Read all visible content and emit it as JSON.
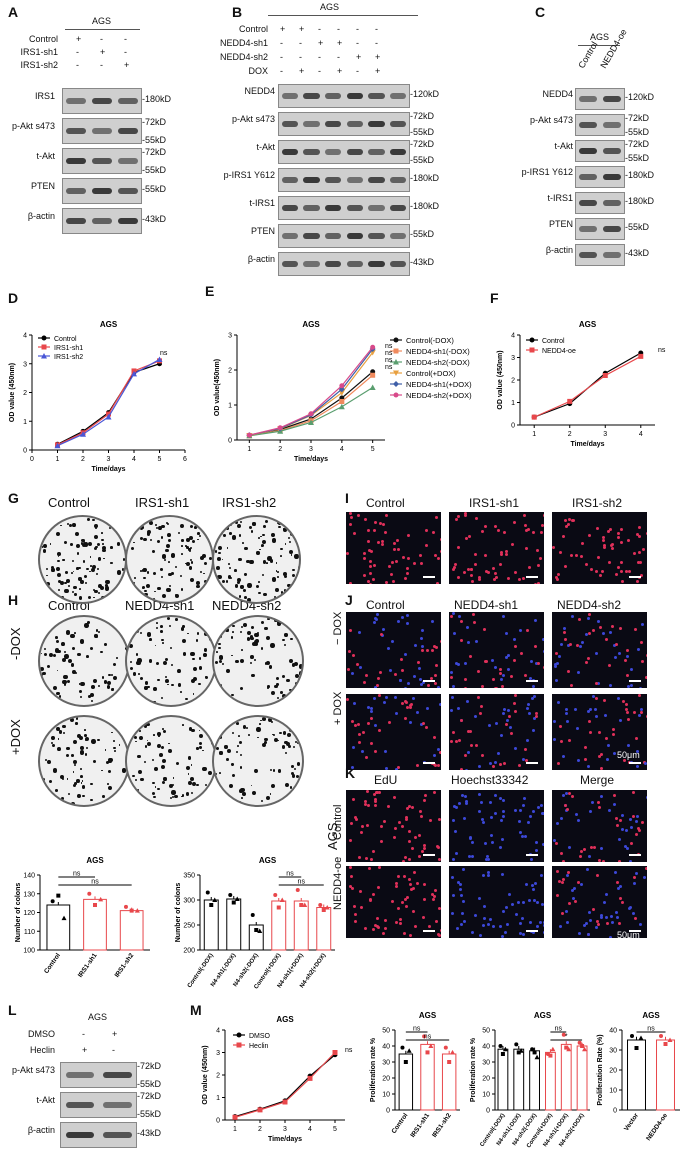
{
  "panels": {
    "A": {
      "letter": "A",
      "cell": "AGS",
      "rows": [
        "Control",
        "IRS1-sh1",
        "IRS1-sh2"
      ],
      "signs": [
        [
          "+",
          "-",
          "-"
        ],
        [
          "-",
          "+",
          "-"
        ],
        [
          "-",
          "-",
          "+"
        ]
      ],
      "blots": [
        {
          "name": "IRS1",
          "kd": [
            "-180kD"
          ]
        },
        {
          "name": "p-Akt s473",
          "kd": [
            "-72kD",
            "-55kD"
          ]
        },
        {
          "name": "t-Akt",
          "kd": [
            "-72kD",
            "-55kD"
          ]
        },
        {
          "name": "PTEN",
          "kd": [
            "-55kD"
          ]
        },
        {
          "name": "β-actin",
          "kd": [
            "-43kD"
          ]
        }
      ]
    },
    "B": {
      "letter": "B",
      "cell": "AGS",
      "rows": [
        "Control",
        "NEDD4-sh1",
        "NEDD4-sh2",
        "DOX"
      ],
      "signs": [
        [
          "+",
          "+",
          "-",
          "-",
          "-",
          "-"
        ],
        [
          "-",
          "-",
          "+",
          "+",
          "-",
          "-"
        ],
        [
          "-",
          "-",
          "-",
          "-",
          "+",
          "+"
        ],
        [
          "-",
          "+",
          "-",
          "+",
          "-",
          "+"
        ]
      ],
      "blots": [
        {
          "name": "NEDD4",
          "kd": [
            "-120kD"
          ]
        },
        {
          "name": "p-Akt s473",
          "kd": [
            "-72kD",
            "-55kD"
          ]
        },
        {
          "name": "t-Akt",
          "kd": [
            "-72kD",
            "-55kD"
          ]
        },
        {
          "name": "p-IRS1 Y612",
          "kd": [
            "-180kD"
          ]
        },
        {
          "name": "t-IRS1",
          "kd": [
            "-180kD"
          ]
        },
        {
          "name": "PTEN",
          "kd": [
            "-55kD"
          ]
        },
        {
          "name": "β-actin",
          "kd": [
            "-43kD"
          ]
        }
      ]
    },
    "C": {
      "letter": "C",
      "cell": "AGS",
      "cols": [
        "Control",
        "NEDD4-oe"
      ],
      "blots": [
        {
          "name": "NEDD4",
          "kd": [
            "-120kD"
          ]
        },
        {
          "name": "p-Akt s473",
          "kd": [
            "-72kD",
            "-55kD"
          ]
        },
        {
          "name": "t-Akt",
          "kd": [
            "-72kD",
            "-55kD"
          ]
        },
        {
          "name": "p-IRS1 Y612",
          "kd": [
            "-180kD"
          ]
        },
        {
          "name": "t-IRS1",
          "kd": [
            "-180kD"
          ]
        },
        {
          "name": "PTEN",
          "kd": [
            "-55kD"
          ]
        },
        {
          "name": "β-actin",
          "kd": [
            "-43kD"
          ]
        }
      ]
    },
    "G": {
      "letter": "G",
      "labels": [
        "Control",
        "IRS1-sh1",
        "IRS1-sh2"
      ]
    },
    "H": {
      "letter": "H",
      "labels": [
        "Control",
        "NEDD4-sh1",
        "NEDD4-sh2"
      ],
      "rows": [
        "-DOX",
        "+DOX"
      ]
    },
    "I": {
      "letter": "I",
      "labels": [
        "Control",
        "IRS1-sh1",
        "IRS1-sh2"
      ]
    },
    "J": {
      "letter": "J",
      "labels": [
        "Control",
        "NEDD4-sh1",
        "NEDD4-sh2"
      ],
      "rows": [
        "− DOX",
        "+ DOX"
      ],
      "scale": "50μm"
    },
    "K": {
      "letter": "K",
      "labels": [
        "EdU",
        "Hoechst33342",
        "Merge"
      ],
      "rows": [
        "Control",
        "NEDD4-oe"
      ],
      "cell": "AGS",
      "scale": "50μm"
    },
    "L": {
      "letter": "L",
      "cell": "AGS",
      "rows": [
        "DMSO",
        "Heclin"
      ],
      "signs": [
        [
          "-",
          "+"
        ],
        [
          "+",
          "-"
        ]
      ],
      "blots": [
        {
          "name": "p-Akt s473",
          "kd": [
            "-72kD",
            "-55kD"
          ]
        },
        {
          "name": "t-Akt",
          "kd": [
            "-72kD",
            "-55kD"
          ]
        },
        {
          "name": "β-actin",
          "kd": [
            "-43kD"
          ]
        }
      ]
    },
    "D": {
      "letter": "D"
    },
    "E": {
      "letter": "E"
    },
    "F": {
      "letter": "F"
    },
    "M": {
      "letter": "M"
    }
  },
  "chart_data": [
    {
      "id": "D",
      "type": "line",
      "title": "AGS",
      "xlabel": "Time/days",
      "ylabel": "OD value (450nm)",
      "xlim": [
        0,
        6
      ],
      "ylim": [
        0,
        4
      ],
      "xticks": [
        0,
        1,
        2,
        3,
        4,
        5,
        6
      ],
      "yticks": [
        0,
        1,
        2,
        3,
        4
      ],
      "annotation": "ns",
      "legend": "top-left",
      "series": [
        {
          "name": "Control",
          "color": "#000000",
          "marker": "circle",
          "x": [
            1,
            2,
            3,
            4,
            5
          ],
          "y": [
            0.2,
            0.65,
            1.3,
            2.7,
            3.0
          ]
        },
        {
          "name": "IRS1-sh1",
          "color": "#e8474b",
          "marker": "square",
          "x": [
            1,
            2,
            3,
            4,
            5
          ],
          "y": [
            0.18,
            0.6,
            1.25,
            2.75,
            3.1
          ]
        },
        {
          "name": "IRS1-sh2",
          "color": "#4a57d6",
          "marker": "triangle",
          "x": [
            1,
            2,
            3,
            4,
            5
          ],
          "y": [
            0.15,
            0.55,
            1.15,
            2.65,
            3.15
          ]
        }
      ]
    },
    {
      "id": "E",
      "type": "line",
      "title": "AGS",
      "xlabel": "Time/days",
      "ylabel": "OD value(450nm)",
      "xlim": [
        0.6,
        5.4
      ],
      "ylim": [
        0,
        3
      ],
      "xticks": [
        1,
        2,
        3,
        4,
        5
      ],
      "yticks": [
        0,
        1,
        2,
        3
      ],
      "annotation": [
        "ns",
        "ns",
        "ns",
        "ns"
      ],
      "legend": "right",
      "series": [
        {
          "name": "Control(-DOX)",
          "color": "#111111",
          "marker": "circle",
          "x": [
            1,
            2,
            3,
            4,
            5
          ],
          "y": [
            0.13,
            0.3,
            0.6,
            1.2,
            1.95
          ]
        },
        {
          "name": "NEDD4-sh1(-DOX)",
          "color": "#f08a5d",
          "marker": "square",
          "x": [
            1,
            2,
            3,
            4,
            5
          ],
          "y": [
            0.12,
            0.27,
            0.55,
            1.1,
            1.85
          ]
        },
        {
          "name": "NEDD4-sh2(-DOX)",
          "color": "#5a9e6f",
          "marker": "triangle",
          "x": [
            1,
            2,
            3,
            4,
            5
          ],
          "y": [
            0.12,
            0.25,
            0.5,
            0.95,
            1.5
          ]
        },
        {
          "name": "Control(+DOX)",
          "color": "#e8a040",
          "marker": "triangle-down",
          "x": [
            1,
            2,
            3,
            4,
            5
          ],
          "y": [
            0.13,
            0.32,
            0.7,
            1.35,
            2.5
          ]
        },
        {
          "name": "NEDD4-sh1(+DOX)",
          "color": "#3f5fa8",
          "marker": "diamond",
          "x": [
            1,
            2,
            3,
            4,
            5
          ],
          "y": [
            0.14,
            0.33,
            0.72,
            1.45,
            2.6
          ]
        },
        {
          "name": "NEDD4-sh2(+DOX)",
          "color": "#d84a8a",
          "marker": "circle",
          "x": [
            1,
            2,
            3,
            4,
            5
          ],
          "y": [
            0.14,
            0.35,
            0.75,
            1.55,
            2.65
          ]
        }
      ]
    },
    {
      "id": "F",
      "type": "line",
      "title": "AGS",
      "xlabel": "Time/days",
      "ylabel": "OD value (450nm)",
      "xlim": [
        0.6,
        4.4
      ],
      "ylim": [
        0,
        4
      ],
      "xticks": [
        1,
        2,
        3,
        4
      ],
      "yticks": [
        0,
        1,
        2,
        3,
        4
      ],
      "annotation": "ns",
      "legend": "top-left",
      "series": [
        {
          "name": "Control",
          "color": "#000000",
          "marker": "circle",
          "x": [
            1,
            2,
            3,
            4
          ],
          "y": [
            0.35,
            0.95,
            2.3,
            3.2
          ]
        },
        {
          "name": "NEDD4-oe",
          "color": "#e8474b",
          "marker": "square",
          "x": [
            1,
            2,
            3,
            4
          ],
          "y": [
            0.35,
            1.05,
            2.2,
            3.05
          ]
        }
      ]
    },
    {
      "id": "H1",
      "type": "bar",
      "title": "AGS",
      "ylabel": "Number of colons",
      "ylim": [
        100,
        140
      ],
      "yticks": [
        100,
        110,
        120,
        130,
        140
      ],
      "categories": [
        "Control",
        "IRS1-sh1",
        "IRS1-sh2"
      ],
      "values": [
        124,
        127,
        121
      ],
      "colors": [
        "#000000",
        "#e8474b",
        "#e8474b"
      ],
      "points": [
        [
          126,
          129,
          117
        ],
        [
          130,
          124,
          127
        ],
        [
          123,
          121,
          121
        ]
      ],
      "annotation": [
        "ns",
        "ns"
      ]
    },
    {
      "id": "H2",
      "type": "bar",
      "title": "AGS",
      "ylabel": "Number of colons",
      "ylim": [
        200,
        350
      ],
      "yticks": [
        200,
        250,
        300,
        350
      ],
      "categories": [
        "Control(-DOX)",
        "N4-sh1(-DOX)",
        "N4-sh2(-DOX)",
        "Control(+DOX)",
        "N4-sh1(+DOX)",
        "N4-sh2(+DOX)"
      ],
      "values": [
        300,
        302,
        250,
        298,
        298,
        285
      ],
      "colors": [
        "#000000",
        "#000000",
        "#000000",
        "#e8474b",
        "#e8474b",
        "#e8474b"
      ],
      "points": [
        [
          315,
          290,
          300
        ],
        [
          310,
          295,
          302
        ],
        [
          270,
          240,
          238
        ],
        [
          310,
          285,
          300
        ],
        [
          320,
          290,
          290
        ],
        [
          290,
          280,
          285
        ]
      ],
      "annotation": [
        "ns",
        "ns"
      ]
    },
    {
      "id": "L-M",
      "type": "line",
      "title": "AGS",
      "xlabel": "Time/days",
      "ylabel": "OD value (450nm)",
      "xlim": [
        0.6,
        5.4
      ],
      "ylim": [
        0,
        4
      ],
      "xticks": [
        1,
        2,
        3,
        4,
        5
      ],
      "yticks": [
        0,
        1,
        2,
        3,
        4
      ],
      "annotation": "ns",
      "legend": "top-left",
      "series": [
        {
          "name": "DMSO",
          "color": "#000000",
          "marker": "circle",
          "x": [
            1,
            2,
            3,
            4,
            5
          ],
          "y": [
            0.15,
            0.48,
            0.85,
            1.95,
            2.9
          ]
        },
        {
          "name": "Heclin",
          "color": "#e8474b",
          "marker": "square",
          "x": [
            1,
            2,
            3,
            4,
            5
          ],
          "y": [
            0.12,
            0.45,
            0.8,
            1.85,
            3.0
          ]
        }
      ]
    },
    {
      "id": "M1",
      "type": "bar",
      "title": "AGS",
      "ylabel": "Proliferation rate %",
      "ylim": [
        0,
        50
      ],
      "yticks": [
        0,
        10,
        20,
        30,
        40,
        50
      ],
      "categories": [
        "Control",
        "IRS1-sh1",
        "IRS1-sh2"
      ],
      "values": [
        35,
        41,
        35
      ],
      "colors": [
        "#000000",
        "#e8474b",
        "#e8474b"
      ],
      "points": [
        [
          39,
          30,
          37
        ],
        [
          46,
          36,
          40
        ],
        [
          39,
          30,
          36
        ]
      ],
      "annotation": [
        "ns",
        "ns"
      ]
    },
    {
      "id": "M2",
      "type": "bar",
      "title": "AGS",
      "ylabel": "Proliferation rate %",
      "ylim": [
        0,
        50
      ],
      "yticks": [
        0,
        10,
        20,
        30,
        40,
        50
      ],
      "categories": [
        "Control(-DOX)",
        "N4-sh1(-DOX)",
        "N4-sh2(-DOX)",
        "Control(+DOX)",
        "N4-sh1(+DOX)",
        "N4-sh2(+DOX)"
      ],
      "values": [
        38,
        38,
        37,
        36,
        41,
        40
      ],
      "colors": [
        "#000000",
        "#000000",
        "#000000",
        "#e8474b",
        "#e8474b",
        "#e8474b"
      ],
      "points": [
        [
          40,
          35,
          38
        ],
        [
          41,
          36,
          37
        ],
        [
          38,
          36,
          33
        ],
        [
          35,
          34,
          38
        ],
        [
          47,
          39,
          38
        ],
        [
          42,
          40,
          38
        ]
      ],
      "annotation": [
        "ns",
        "*"
      ]
    },
    {
      "id": "M3",
      "type": "bar",
      "title": "AGS",
      "ylabel": "Proliferation Rate (%)",
      "ylim": [
        0,
        40
      ],
      "yticks": [
        0,
        10,
        20,
        30,
        40
      ],
      "categories": [
        "Vector",
        "NEDD4-oe"
      ],
      "values": [
        35,
        35
      ],
      "colors": [
        "#000000",
        "#e8474b"
      ],
      "points": [
        [
          37,
          31,
          36
        ],
        [
          37,
          33,
          35
        ]
      ],
      "annotation": [
        "ns"
      ]
    }
  ]
}
